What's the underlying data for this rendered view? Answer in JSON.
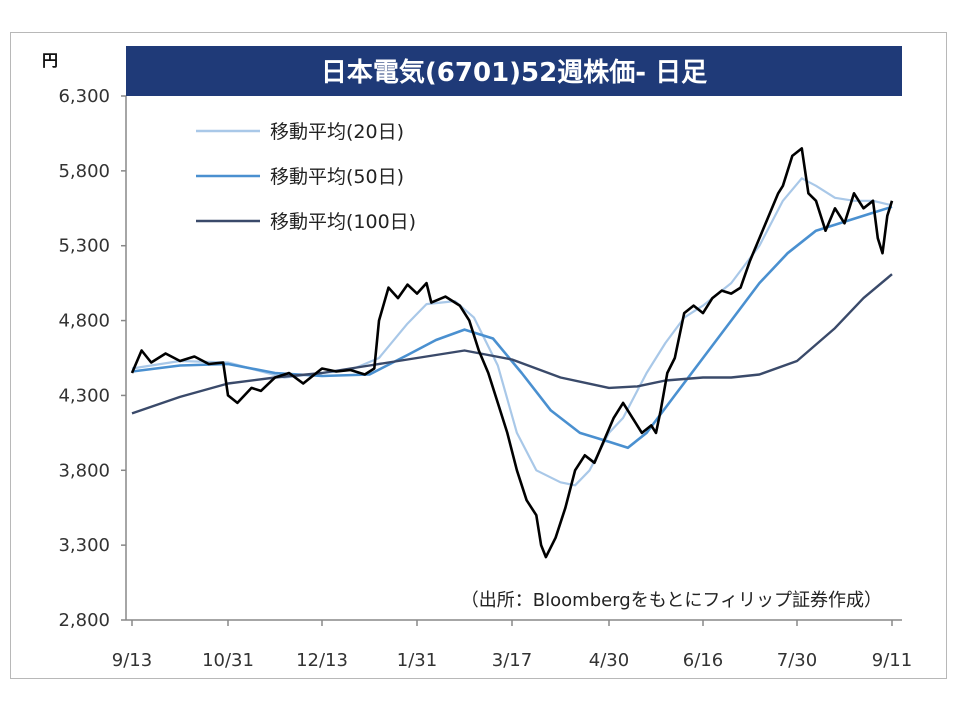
{
  "chart_data": {
    "type": "line",
    "title": "日本電気(6701)52週株価- 日足",
    "unit": "円",
    "source_note": "（出所：Bloombergをもとにフィリップ証券作成）",
    "x_ticks": [
      "9/13",
      "10/31",
      "12/13",
      "1/31",
      "3/17",
      "4/30",
      "6/16",
      "7/30",
      "9/11"
    ],
    "y_ticks": [
      2800,
      3300,
      3800,
      4300,
      4800,
      5300,
      5800,
      6300
    ],
    "y_tick_labels": [
      "2,800",
      "3,300",
      "3,800",
      "4,300",
      "4,800",
      "5,300",
      "5,800",
      "6,300"
    ],
    "ylim": [
      2800,
      6300
    ],
    "legend_placement": "top-left",
    "grid": false,
    "colors": {
      "price": "#000000",
      "ma20": "#a9c8e8",
      "ma50": "#4a90d0",
      "ma100": "#3a4a6a",
      "title_bg": "#1f3a78"
    },
    "series": [
      {
        "name": "移動平均(20日)",
        "key": "ma20",
        "points": [
          [
            0,
            4480
          ],
          [
            0.5,
            4530
          ],
          [
            1,
            4520
          ],
          [
            1.3,
            4470
          ],
          [
            1.6,
            4420
          ],
          [
            2,
            4450
          ],
          [
            2.3,
            4470
          ],
          [
            2.6,
            4550
          ],
          [
            2.9,
            4780
          ],
          [
            3.1,
            4910
          ],
          [
            3.4,
            4930
          ],
          [
            3.6,
            4820
          ],
          [
            3.85,
            4500
          ],
          [
            4.05,
            4050
          ],
          [
            4.25,
            3800
          ],
          [
            4.5,
            3720
          ],
          [
            4.65,
            3700
          ],
          [
            4.8,
            3800
          ],
          [
            5.0,
            4050
          ],
          [
            5.15,
            4150
          ],
          [
            5.4,
            4450
          ],
          [
            5.6,
            4650
          ],
          [
            5.8,
            4820
          ],
          [
            6.0,
            4900
          ],
          [
            6.3,
            5050
          ],
          [
            6.6,
            5300
          ],
          [
            6.85,
            5600
          ],
          [
            7.05,
            5750
          ],
          [
            7.2,
            5700
          ],
          [
            7.4,
            5620
          ],
          [
            7.6,
            5600
          ],
          [
            7.8,
            5600
          ],
          [
            8.0,
            5570
          ]
        ]
      },
      {
        "name": "移動平均(50日)",
        "key": "ma50",
        "points": [
          [
            0,
            4460
          ],
          [
            0.5,
            4500
          ],
          [
            1,
            4510
          ],
          [
            1.5,
            4450
          ],
          [
            2,
            4430
          ],
          [
            2.5,
            4440
          ],
          [
            2.9,
            4570
          ],
          [
            3.2,
            4670
          ],
          [
            3.5,
            4740
          ],
          [
            3.8,
            4680
          ],
          [
            4.1,
            4450
          ],
          [
            4.4,
            4200
          ],
          [
            4.7,
            4050
          ],
          [
            5.0,
            3990
          ],
          [
            5.2,
            3950
          ],
          [
            5.4,
            4050
          ],
          [
            5.7,
            4300
          ],
          [
            6.0,
            4550
          ],
          [
            6.3,
            4800
          ],
          [
            6.6,
            5050
          ],
          [
            6.9,
            5250
          ],
          [
            7.2,
            5400
          ],
          [
            7.5,
            5460
          ],
          [
            7.8,
            5520
          ],
          [
            8.0,
            5560
          ]
        ]
      },
      {
        "name": "移動平均(100日)",
        "key": "ma100",
        "points": [
          [
            0,
            4180
          ],
          [
            0.5,
            4290
          ],
          [
            1,
            4380
          ],
          [
            1.5,
            4420
          ],
          [
            2,
            4450
          ],
          [
            2.5,
            4500
          ],
          [
            3,
            4550
          ],
          [
            3.5,
            4600
          ],
          [
            4,
            4540
          ],
          [
            4.5,
            4420
          ],
          [
            5,
            4350
          ],
          [
            5.3,
            4360
          ],
          [
            5.6,
            4400
          ],
          [
            6,
            4420
          ],
          [
            6.3,
            4420
          ],
          [
            6.6,
            4440
          ],
          [
            7,
            4530
          ],
          [
            7.4,
            4750
          ],
          [
            7.7,
            4950
          ],
          [
            8.0,
            5110
          ]
        ]
      },
      {
        "name": "株価",
        "key": "price",
        "points": [
          [
            0,
            4450
          ],
          [
            0.1,
            4600
          ],
          [
            0.2,
            4520
          ],
          [
            0.35,
            4580
          ],
          [
            0.5,
            4530
          ],
          [
            0.65,
            4560
          ],
          [
            0.8,
            4510
          ],
          [
            0.95,
            4520
          ],
          [
            1.0,
            4300
          ],
          [
            1.1,
            4250
          ],
          [
            1.25,
            4350
          ],
          [
            1.35,
            4330
          ],
          [
            1.5,
            4420
          ],
          [
            1.65,
            4450
          ],
          [
            1.8,
            4380
          ],
          [
            2.0,
            4480
          ],
          [
            2.15,
            4460
          ],
          [
            2.3,
            4470
          ],
          [
            2.45,
            4440
          ],
          [
            2.55,
            4480
          ],
          [
            2.6,
            4800
          ],
          [
            2.7,
            5020
          ],
          [
            2.8,
            4950
          ],
          [
            2.9,
            5040
          ],
          [
            3.0,
            4980
          ],
          [
            3.1,
            5050
          ],
          [
            3.15,
            4920
          ],
          [
            3.3,
            4960
          ],
          [
            3.45,
            4900
          ],
          [
            3.55,
            4800
          ],
          [
            3.65,
            4600
          ],
          [
            3.75,
            4450
          ],
          [
            3.85,
            4250
          ],
          [
            3.95,
            4050
          ],
          [
            4.05,
            3800
          ],
          [
            4.15,
            3600
          ],
          [
            4.25,
            3500
          ],
          [
            4.3,
            3300
          ],
          [
            4.35,
            3220
          ],
          [
            4.45,
            3350
          ],
          [
            4.55,
            3550
          ],
          [
            4.65,
            3800
          ],
          [
            4.75,
            3900
          ],
          [
            4.85,
            3850
          ],
          [
            4.95,
            4000
          ],
          [
            5.05,
            4150
          ],
          [
            5.15,
            4250
          ],
          [
            5.25,
            4150
          ],
          [
            5.35,
            4050
          ],
          [
            5.45,
            4100
          ],
          [
            5.5,
            4050
          ],
          [
            5.55,
            4200
          ],
          [
            5.62,
            4450
          ],
          [
            5.7,
            4550
          ],
          [
            5.8,
            4850
          ],
          [
            5.9,
            4900
          ],
          [
            6.0,
            4850
          ],
          [
            6.1,
            4950
          ],
          [
            6.2,
            5000
          ],
          [
            6.3,
            4980
          ],
          [
            6.4,
            5020
          ],
          [
            6.5,
            5200
          ],
          [
            6.6,
            5350
          ],
          [
            6.7,
            5500
          ],
          [
            6.8,
            5650
          ],
          [
            6.85,
            5700
          ],
          [
            6.95,
            5900
          ],
          [
            7.05,
            5950
          ],
          [
            7.12,
            5650
          ],
          [
            7.2,
            5600
          ],
          [
            7.3,
            5400
          ],
          [
            7.4,
            5550
          ],
          [
            7.5,
            5450
          ],
          [
            7.6,
            5650
          ],
          [
            7.7,
            5550
          ],
          [
            7.8,
            5600
          ],
          [
            7.85,
            5350
          ],
          [
            7.9,
            5250
          ],
          [
            7.95,
            5500
          ],
          [
            8.0,
            5600
          ]
        ]
      }
    ]
  }
}
